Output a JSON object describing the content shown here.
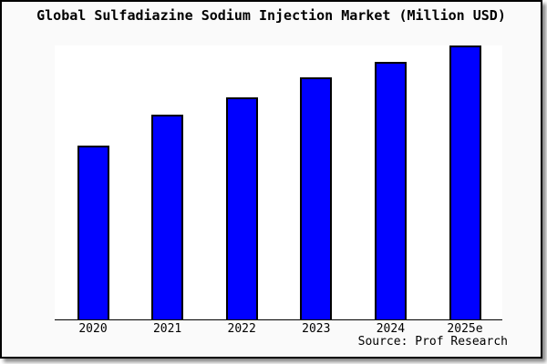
{
  "window": {
    "title": "Global Sulfadiazine Sodium Injection Market (Million USD)"
  },
  "chart_data": {
    "type": "bar",
    "title": "Global Sulfadiazine Sodium Injection Market (Million USD)",
    "categories": [
      "2020",
      "2021",
      "2022",
      "2023",
      "2024",
      "2025e"
    ],
    "values": [
      63.5,
      74.8,
      81.1,
      88.4,
      94.0,
      100.0
    ],
    "value_scale": "relative units, 2025e bar = 100; no y-axis tick labels or data labels shown in image",
    "xlabel": "",
    "ylabel": "",
    "ylim": [
      0,
      100
    ],
    "grid": false,
    "legend": false,
    "bar_color": "#0000ff",
    "bar_outline_color": "#000000",
    "source_text": "Source: Prof Research"
  },
  "colors": {
    "frame_background": "#fafafa",
    "plot_background": "#ffffff",
    "border": "#000000",
    "bar_fill": "#0000ff",
    "text": "#000000",
    "shadow": "#8a8a8a"
  }
}
